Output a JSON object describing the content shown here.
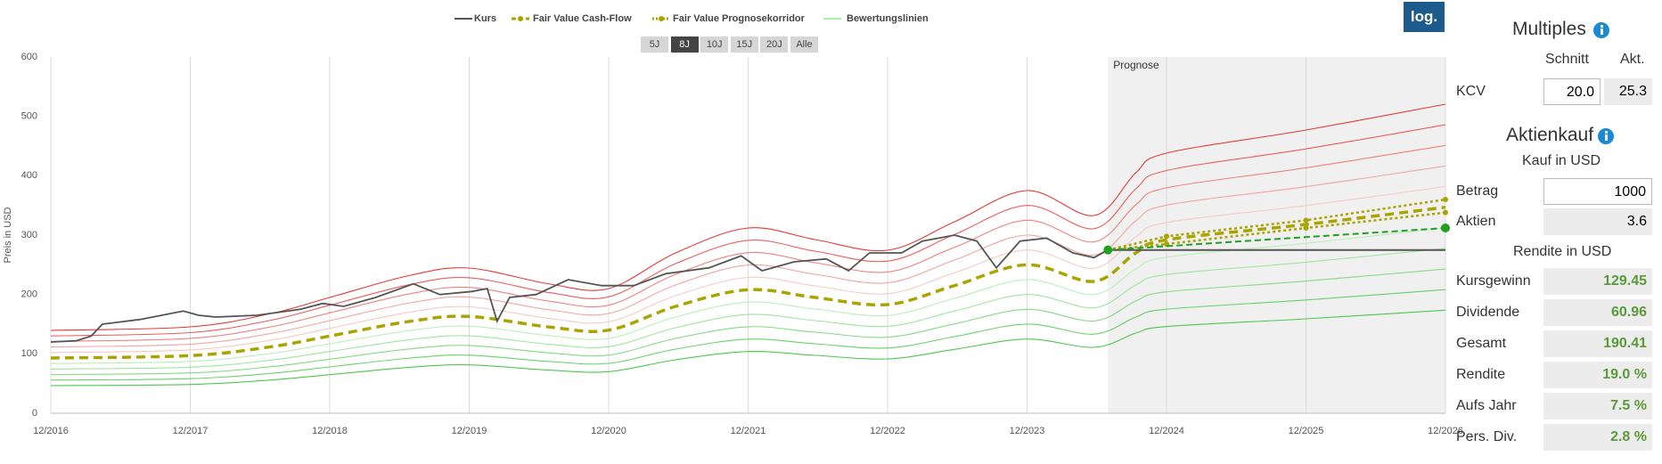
{
  "chart_data": {
    "type": "line",
    "y_label": "Preis in USD",
    "xlim": [
      2016.92,
      2026.92
    ],
    "ylim": [
      0,
      600
    ],
    "yticks": [
      0,
      100,
      200,
      300,
      400,
      500,
      600
    ],
    "xticks": [
      {
        "value": 2016.92,
        "label": "12/2016"
      },
      {
        "value": 2017.92,
        "label": "12/2017"
      },
      {
        "value": 2018.92,
        "label": "12/2018"
      },
      {
        "value": 2019.92,
        "label": "12/2019"
      },
      {
        "value": 2020.92,
        "label": "12/2020"
      },
      {
        "value": 2021.92,
        "label": "12/2021"
      },
      {
        "value": 2022.92,
        "label": "12/2022"
      },
      {
        "value": 2023.92,
        "label": "12/2023"
      },
      {
        "value": 2024.92,
        "label": "12/2024"
      },
      {
        "value": 2025.92,
        "label": "12/2025"
      },
      {
        "value": 2026.92,
        "label": "12/2026"
      }
    ],
    "grid": "x",
    "forecast": {
      "label": "Prognose",
      "start": 2024.5,
      "color": "#f0f0f0"
    },
    "series": [
      {
        "name": "Kurs",
        "color": "#555555",
        "x": [
          2016.92,
          2017.1,
          2017.21,
          2017.29,
          2017.56,
          2017.87,
          2017.98,
          2018.1,
          2018.4,
          2018.71,
          2018.87,
          2019.02,
          2019.25,
          2019.52,
          2019.71,
          2019.94,
          2020.05,
          2020.12,
          2020.21,
          2020.4,
          2020.63,
          2020.87,
          2021.1,
          2021.33,
          2021.64,
          2021.87,
          2022.02,
          2022.25,
          2022.48,
          2022.64,
          2022.79,
          2023.02,
          2023.17,
          2023.4,
          2023.56,
          2023.7,
          2023.87,
          2024.06,
          2024.25,
          2024.4,
          2024.5
        ],
        "values": [
          120,
          122,
          130,
          150,
          158,
          172,
          165,
          162,
          165,
          175,
          185,
          180,
          195,
          218,
          200,
          205,
          210,
          155,
          195,
          200,
          225,
          215,
          215,
          235,
          245,
          265,
          240,
          255,
          260,
          240,
          270,
          270,
          290,
          300,
          290,
          245,
          290,
          295,
          270,
          262,
          275
        ]
      },
      {
        "name": "Fair Value Cash-Flow",
        "color": "#a9a400",
        "x": [
          2016.92,
          2017.92,
          2018.5,
          2018.92,
          2019.5,
          2019.92,
          2020.5,
          2020.92,
          2021.4,
          2021.92,
          2022.4,
          2022.92,
          2023.4,
          2023.92,
          2024.4,
          2024.7,
          2024.92,
          2025.92,
          2026.92
        ],
        "values": [
          93,
          97,
          112,
          130,
          155,
          163,
          145,
          140,
          180,
          208,
          195,
          183,
          215,
          250,
          222,
          270,
          292,
          318,
          347
        ]
      },
      {
        "name": "Fair Value Prognosekorridor",
        "color": "#a9a400",
        "x": [
          2024.5,
          2024.92,
          2025.92,
          2026.92
        ],
        "values": [
          275,
          298,
          325,
          360
        ],
        "lower": [
          275,
          285,
          312,
          338
        ]
      },
      {
        "name": "Bewertungslinien",
        "color": "#90ee90",
        "factors": [
          1.5,
          1.4,
          1.3,
          1.2,
          1.1,
          0.9,
          0.8,
          0.7,
          0.6,
          0.5
        ]
      }
    ],
    "projection": {
      "color": "#22a022",
      "x": [
        2024.5,
        2026.92
      ],
      "values": [
        275,
        312
      ]
    },
    "baseline": {
      "color": "#555555",
      "x": [
        2024.5,
        2026.92
      ],
      "values": [
        275,
        275
      ]
    }
  },
  "controls": {
    "ranges": [
      "5J",
      "8J",
      "10J",
      "15J",
      "20J",
      "Alle"
    ],
    "active": 1,
    "log": "log."
  },
  "panel": {
    "multiples": {
      "title": "Multiples",
      "headers": [
        "Schnitt",
        "Akt."
      ],
      "label": "KCV",
      "values": [
        "20.0",
        "25.3"
      ]
    },
    "purchase": {
      "title": "Aktienkauf",
      "subtitle": "Kauf in USD",
      "rows": [
        {
          "label": "Betrag",
          "value": "1000"
        },
        {
          "label": "Aktien",
          "value": "3.6"
        }
      ]
    },
    "returns": {
      "title": "Rendite in USD",
      "rows": [
        {
          "label": "Kursgewinn",
          "value": "129.45"
        },
        {
          "label": "Dividende",
          "value": "60.96"
        },
        {
          "label": "Gesamt",
          "value": "190.41"
        },
        {
          "label": "Rendite",
          "value": "19.0 %"
        },
        {
          "label": "Aufs Jahr",
          "value": "7.5 %"
        },
        {
          "label": "Pers. Div.",
          "value": "2.8 %"
        }
      ]
    }
  }
}
